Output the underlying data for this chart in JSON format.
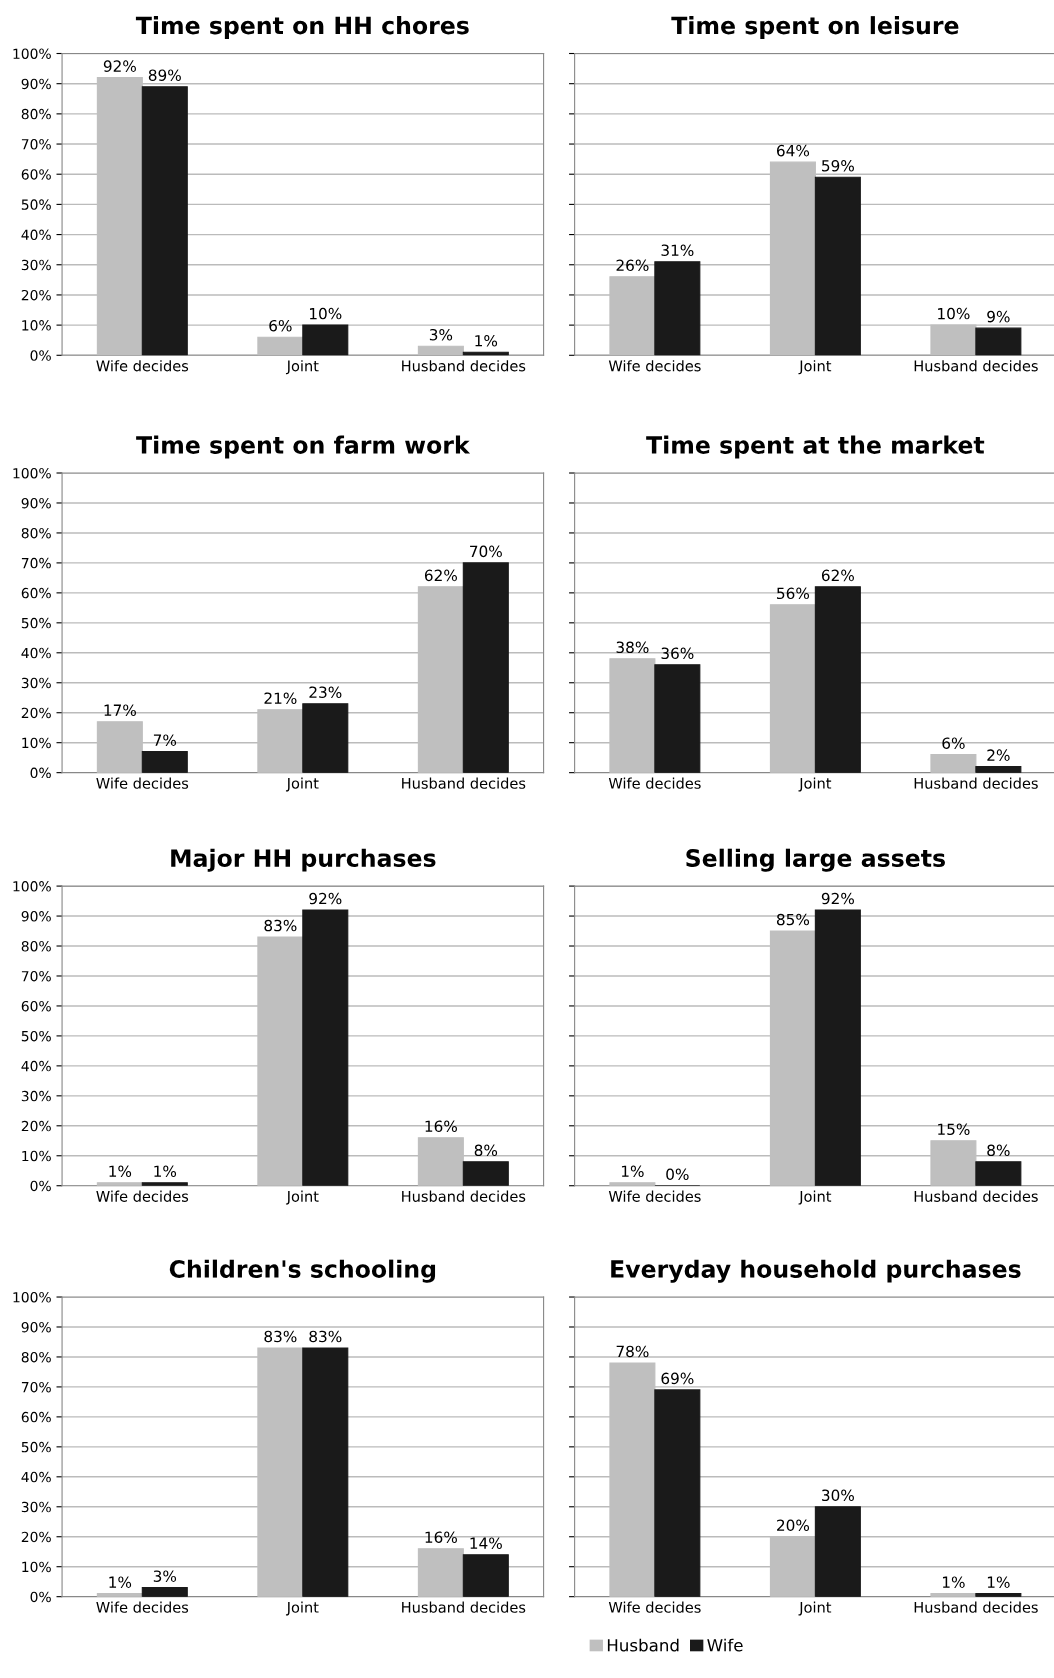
{
  "chart_data": [
    {
      "type": "bar",
      "title": "Time spent on HH chores",
      "categories": [
        "Wife decides",
        "Joint",
        "Husband decides"
      ],
      "ylim": [
        0,
        100
      ],
      "yticks": [
        {
          "value": 0,
          "label": "0%"
        },
        {
          "value": 10,
          "label": "10%"
        },
        {
          "value": 20,
          "label": "20%"
        },
        {
          "value": 30,
          "label": "30%"
        },
        {
          "value": 40,
          "label": "40%"
        },
        {
          "value": 50,
          "label": "50%"
        },
        {
          "value": 60,
          "label": "60%"
        },
        {
          "value": 70,
          "label": "70%"
        },
        {
          "value": 80,
          "label": "80%"
        },
        {
          "value": 90,
          "label": "90%"
        },
        {
          "value": 100,
          "label": "100%"
        }
      ],
      "grid": "y",
      "series": [
        {
          "color": "#bfbfbf",
          "values": [
            92,
            6,
            3
          ],
          "value_labels": [
            "92%",
            "6%",
            "3%"
          ]
        },
        {
          "color": "#1a1a1a",
          "values": [
            89,
            10,
            1
          ],
          "value_labels": [
            "89%",
            "10%",
            "1%"
          ]
        }
      ]
    },
    {
      "type": "bar",
      "title": "Time spent on leisure",
      "categories": [
        "Wife decides",
        "Joint",
        "Husband decides"
      ],
      "ylim": [
        0,
        100
      ],
      "yticks": [
        0,
        10,
        20,
        30,
        40,
        50,
        60,
        70,
        80,
        90,
        100
      ],
      "tick_labels": "x",
      "grid": "y",
      "series": [
        {
          "color": "#bfbfbf",
          "values": [
            26,
            64,
            10
          ],
          "value_labels": [
            "26%",
            "64%",
            "10%"
          ]
        },
        {
          "color": "#1a1a1a",
          "values": [
            31,
            59,
            9
          ],
          "value_labels": [
            "31%",
            "59%",
            "9%"
          ]
        }
      ]
    },
    {
      "type": "bar",
      "title": "Time spent on farm work",
      "categories": [
        "Wife decides",
        "Joint",
        "Husband decides"
      ],
      "ylim": [
        0,
        100
      ],
      "yticks": [
        {
          "value": 0,
          "label": "0%"
        },
        {
          "value": 10,
          "label": "10%"
        },
        {
          "value": 20,
          "label": "20%"
        },
        {
          "value": 30,
          "label": "30%"
        },
        {
          "value": 40,
          "label": "40%"
        },
        {
          "value": 50,
          "label": "50%"
        },
        {
          "value": 60,
          "label": "60%"
        },
        {
          "value": 70,
          "label": "70%"
        },
        {
          "value": 80,
          "label": "80%"
        },
        {
          "value": 90,
          "label": "90%"
        },
        {
          "value": 100,
          "label": "100%"
        }
      ],
      "grid": "y",
      "series": [
        {
          "color": "#bfbfbf",
          "values": [
            17,
            21,
            62
          ],
          "value_labels": [
            "17%",
            "21%",
            "62%"
          ]
        },
        {
          "color": "#1a1a1a",
          "values": [
            7,
            23,
            70
          ],
          "value_labels": [
            "7%",
            "23%",
            "70%"
          ]
        }
      ]
    },
    {
      "type": "bar",
      "title": "Time spent at the market",
      "categories": [
        "Wife decides",
        "Joint",
        "Husband decides"
      ],
      "ylim": [
        0,
        100
      ],
      "yticks": [
        0,
        10,
        20,
        30,
        40,
        50,
        60,
        70,
        80,
        90,
        100
      ],
      "tick_labels": "x",
      "grid": "y",
      "series": [
        {
          "color": "#bfbfbf",
          "values": [
            38,
            56,
            6
          ],
          "value_labels": [
            "38%",
            "56%",
            "6%"
          ]
        },
        {
          "color": "#1a1a1a",
          "values": [
            36,
            62,
            2
          ],
          "value_labels": [
            "36%",
            "62%",
            "2%"
          ]
        }
      ]
    },
    {
      "type": "bar",
      "title": "Major HH purchases",
      "categories": [
        "Wife decides",
        "Joint",
        "Husband decides"
      ],
      "ylim": [
        0,
        100
      ],
      "yticks": [
        {
          "value": 0,
          "label": "0%"
        },
        {
          "value": 10,
          "label": "10%"
        },
        {
          "value": 20,
          "label": "20%"
        },
        {
          "value": 30,
          "label": "30%"
        },
        {
          "value": 40,
          "label": "40%"
        },
        {
          "value": 50,
          "label": "50%"
        },
        {
          "value": 60,
          "label": "60%"
        },
        {
          "value": 70,
          "label": "70%"
        },
        {
          "value": 80,
          "label": "80%"
        },
        {
          "value": 90,
          "label": "90%"
        },
        {
          "value": 100,
          "label": "100%"
        }
      ],
      "grid": "y",
      "series": [
        {
          "color": "#bfbfbf",
          "values": [
            1,
            83,
            16
          ],
          "value_labels": [
            "1%",
            "83%",
            "16%"
          ]
        },
        {
          "color": "#1a1a1a",
          "values": [
            1,
            92,
            8
          ],
          "value_labels": [
            "1%",
            "92%",
            "8%"
          ]
        }
      ]
    },
    {
      "type": "bar",
      "title": "Selling large assets",
      "categories": [
        "Wife decides",
        "Joint",
        "Husband decides"
      ],
      "ylim": [
        0,
        100
      ],
      "yticks": [
        0,
        10,
        20,
        30,
        40,
        50,
        60,
        70,
        80,
        90,
        100
      ],
      "tick_labels": "x",
      "grid": "y",
      "series": [
        {
          "color": "#bfbfbf",
          "values": [
            1,
            85,
            15
          ],
          "value_labels": [
            "1%",
            "85%",
            "15%"
          ]
        },
        {
          "color": "#1a1a1a",
          "values": [
            0,
            92,
            8
          ],
          "value_labels": [
            "0%",
            "92%",
            "8%"
          ]
        }
      ]
    },
    {
      "type": "bar",
      "title": "Children's schooling",
      "categories": [
        "Wife decides",
        "Joint",
        "Husband decides"
      ],
      "ylim": [
        0,
        100
      ],
      "yticks": [
        {
          "value": 0,
          "label": "0%"
        },
        {
          "value": 10,
          "label": "10%"
        },
        {
          "value": 20,
          "label": "20%"
        },
        {
          "value": 30,
          "label": "30%"
        },
        {
          "value": 40,
          "label": "40%"
        },
        {
          "value": 50,
          "label": "50%"
        },
        {
          "value": 60,
          "label": "60%"
        },
        {
          "value": 70,
          "label": "70%"
        },
        {
          "value": 80,
          "label": "80%"
        },
        {
          "value": 90,
          "label": "90%"
        },
        {
          "value": 100,
          "label": "100%"
        }
      ],
      "grid": "y",
      "series": [
        {
          "color": "#bfbfbf",
          "values": [
            1,
            83,
            16
          ],
          "value_labels": [
            "1%",
            "83%",
            "16%"
          ]
        },
        {
          "color": "#1a1a1a",
          "values": [
            3,
            83,
            14
          ],
          "value_labels": [
            "3%",
            "83%",
            "14%"
          ]
        }
      ]
    },
    {
      "type": "bar",
      "title": "Everyday household purchases",
      "categories": [
        "Wife decides",
        "Joint",
        "Husband decides"
      ],
      "ylim": [
        0,
        100
      ],
      "yticks": [
        0,
        10,
        20,
        30,
        40,
        50,
        60,
        70,
        80,
        90,
        100
      ],
      "tick_labels": "x",
      "grid": "y",
      "legend": "bottom",
      "series": [
        {
          "name": "Husband",
          "color": "#bfbfbf",
          "values": [
            78,
            20,
            1
          ],
          "value_labels": [
            "78%",
            "20%",
            "1%"
          ]
        },
        {
          "name": "Wife",
          "color": "#1a1a1a",
          "values": [
            69,
            30,
            1
          ],
          "value_labels": [
            "69%",
            "30%",
            "1%"
          ]
        }
      ]
    }
  ]
}
